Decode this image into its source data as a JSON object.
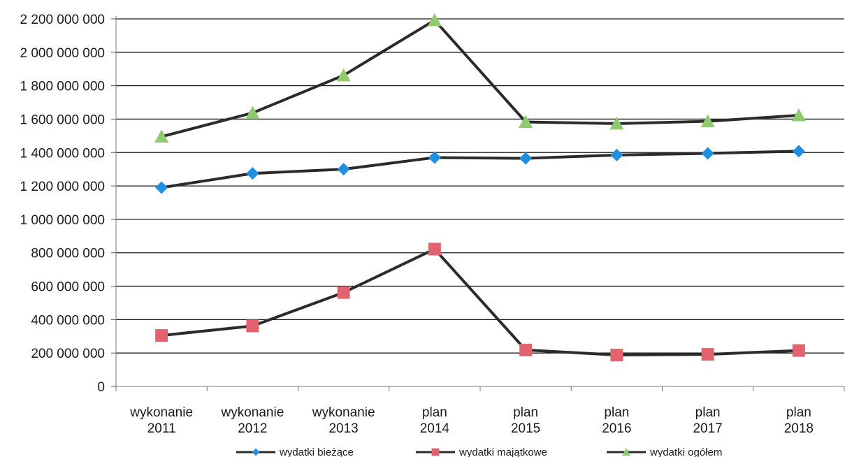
{
  "chart_data": {
    "type": "line",
    "title": "",
    "xlabel": "",
    "ylabel": "",
    "categories": [
      [
        "wykonanie",
        "2011"
      ],
      [
        "wykonanie",
        "2012"
      ],
      [
        "wykonanie",
        "2013"
      ],
      [
        "plan",
        "2014"
      ],
      [
        "plan",
        "2015"
      ],
      [
        "plan",
        "2016"
      ],
      [
        "plan",
        "2017"
      ],
      [
        "plan",
        "2018"
      ]
    ],
    "ylim": [
      0,
      2200000000
    ],
    "yticks": [
      0,
      200000000,
      400000000,
      600000000,
      800000000,
      1000000000,
      1200000000,
      1400000000,
      1600000000,
      1800000000,
      2000000000,
      2200000000
    ],
    "ytick_labels": [
      "0",
      "200 000 000",
      "400 000 000",
      "600 000 000",
      "800 000 000",
      "1 000 000 000",
      "1 200 000 000",
      "1 400 000 000",
      "1 600 000 000",
      "1 800 000 000",
      "2 000 000 000",
      "2 200 000 000"
    ],
    "grid": true,
    "legend_position": "bottom",
    "series": [
      {
        "name": "wydatki bieżące",
        "marker": "diamond",
        "marker_color": "#1f8fe0",
        "line_color": "#2b2b2b",
        "values": [
          1190000000,
          1275000000,
          1300000000,
          1370000000,
          1365000000,
          1385000000,
          1395000000,
          1408000000
        ]
      },
      {
        "name": "wydatki majątkowe",
        "marker": "square",
        "marker_color": "#e2636e",
        "line_color": "#2b2b2b",
        "values": [
          305000000,
          362000000,
          562000000,
          822000000,
          218000000,
          188000000,
          192000000,
          215000000
        ]
      },
      {
        "name": "wydatki ogółem",
        "marker": "triangle",
        "marker_color": "#8fcb6e",
        "line_color": "#2b2b2b",
        "values": [
          1495000000,
          1637000000,
          1862000000,
          2192000000,
          1583000000,
          1573000000,
          1587000000,
          1623000000
        ]
      }
    ]
  }
}
